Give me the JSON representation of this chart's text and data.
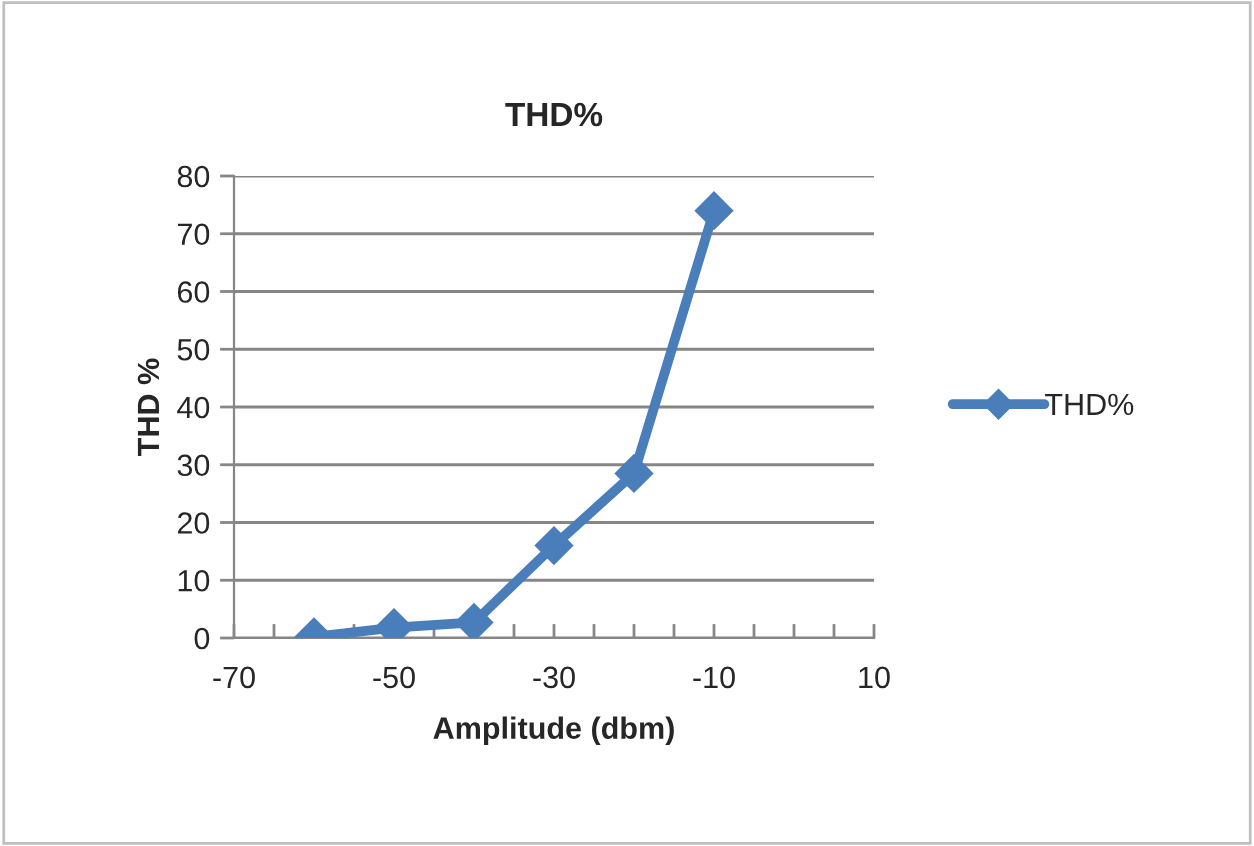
{
  "chart_data": {
    "type": "line",
    "title": "THD%",
    "xlabel": "Amplitude (dbm)",
    "ylabel": "THD %",
    "x": [
      -60,
      -50,
      -40,
      -30,
      -20,
      -10
    ],
    "series": [
      {
        "name": "THD%",
        "color": "#4a7ebb",
        "values": [
          0.2,
          1.8,
          2.7,
          16,
          28.5,
          74
        ]
      }
    ],
    "xlim": [
      -70,
      10
    ],
    "xticks": [
      -70,
      {
        "value": -65,
        "label": null
      },
      {
        "value": -60,
        "label": null
      },
      {
        "value": -55,
        "label": null
      },
      -50,
      {
        "value": -45,
        "label": null
      },
      {
        "value": -40,
        "label": null
      },
      {
        "value": -35,
        "label": null
      },
      -30,
      {
        "value": -25,
        "label": null
      },
      {
        "value": -20,
        "label": null
      },
      {
        "value": -15,
        "label": null
      },
      -10,
      {
        "value": -5,
        "label": null
      },
      {
        "value": 0,
        "label": null
      },
      {
        "value": 5,
        "label": null
      },
      10
    ],
    "ylim": [
      0,
      80
    ],
    "yticks": [
      0,
      10,
      20,
      30,
      40,
      50,
      60,
      70,
      80
    ],
    "grid": "y",
    "legend": "right",
    "marker": "diamond",
    "line_style": "solid"
  }
}
